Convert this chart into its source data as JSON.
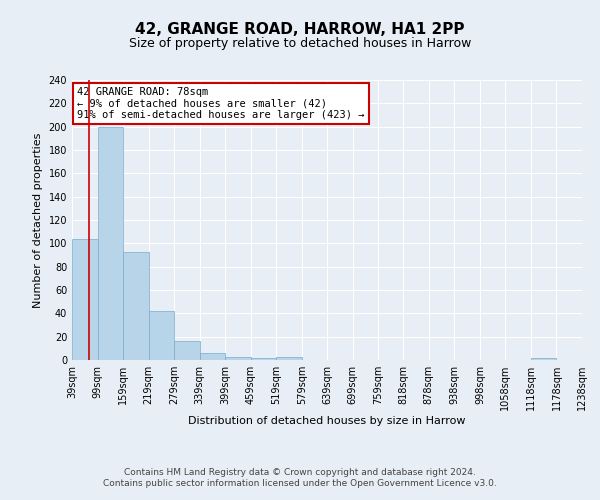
{
  "title": "42, GRANGE ROAD, HARROW, HA1 2PP",
  "subtitle": "Size of property relative to detached houses in Harrow",
  "xlabel": "Distribution of detached houses by size in Harrow",
  "ylabel": "Number of detached properties",
  "footer_line1": "Contains HM Land Registry data © Crown copyright and database right 2024.",
  "footer_line2": "Contains public sector information licensed under the Open Government Licence v3.0.",
  "annotation_line1": "42 GRANGE ROAD: 78sqm",
  "annotation_line2": "← 9% of detached houses are smaller (42)",
  "annotation_line3": "91% of semi-detached houses are larger (423) →",
  "bar_values": [
    104,
    200,
    93,
    42,
    16,
    6,
    3,
    2,
    3,
    0,
    0,
    0,
    0,
    0,
    0,
    0,
    0,
    0,
    2,
    0
  ],
  "bin_edges": [
    39,
    99,
    159,
    219,
    279,
    339,
    399,
    459,
    519,
    579,
    639,
    699,
    759,
    818,
    878,
    938,
    998,
    1058,
    1118,
    1178,
    1238
  ],
  "tick_labels": [
    "39sqm",
    "99sqm",
    "159sqm",
    "219sqm",
    "279sqm",
    "339sqm",
    "399sqm",
    "459sqm",
    "519sqm",
    "579sqm",
    "639sqm",
    "699sqm",
    "759sqm",
    "818sqm",
    "878sqm",
    "938sqm",
    "998sqm",
    "1058sqm",
    "1118sqm",
    "1178sqm",
    "1238sqm"
  ],
  "ylim": [
    0,
    240
  ],
  "yticks": [
    0,
    20,
    40,
    60,
    80,
    100,
    120,
    140,
    160,
    180,
    200,
    220,
    240
  ],
  "property_size": 78,
  "bar_color": "#b8d4e8",
  "bar_edge_color": "#7aabcc",
  "red_line_x": 78,
  "background_color": "#e8eef5",
  "annotation_box_color": "#ffffff",
  "annotation_box_edge_color": "#cc0000",
  "grid_color": "#ffffff",
  "title_fontsize": 11,
  "subtitle_fontsize": 9,
  "axis_label_fontsize": 8,
  "tick_fontsize": 7,
  "annotation_fontsize": 7.5,
  "footer_fontsize": 6.5
}
